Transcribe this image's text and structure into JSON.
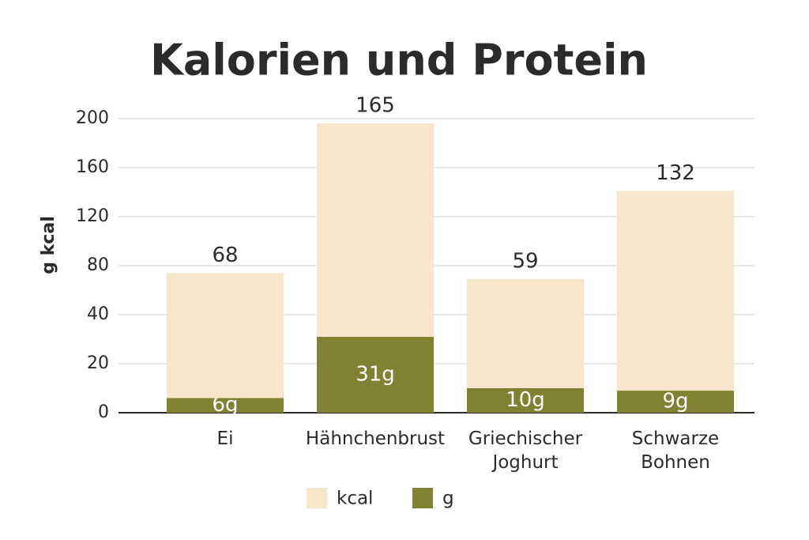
{
  "chart_data": {
    "type": "stacked_bar",
    "title": "Kalorien und Protein",
    "y_label": "g kcal",
    "categories": [
      "Ei",
      "Hähnchenbrust",
      "Griechischer Joghurt",
      "Schwarze Bohnen"
    ],
    "series": [
      {
        "name": "g",
        "color": "#808232",
        "values": [
          6,
          31,
          10,
          9
        ],
        "value_labels": [
          "6g",
          "31g",
          "10g",
          "9g"
        ]
      },
      {
        "name": "kcal",
        "color": "#f5e6cc",
        "values": [
          68,
          165,
          59,
          132
        ]
      }
    ],
    "legend_order": [
      "kcal",
      "g"
    ],
    "ylim": [
      0,
      200
    ],
    "yticks": [
      0,
      20,
      40,
      80,
      120,
      160,
      200
    ],
    "grid": true
  }
}
